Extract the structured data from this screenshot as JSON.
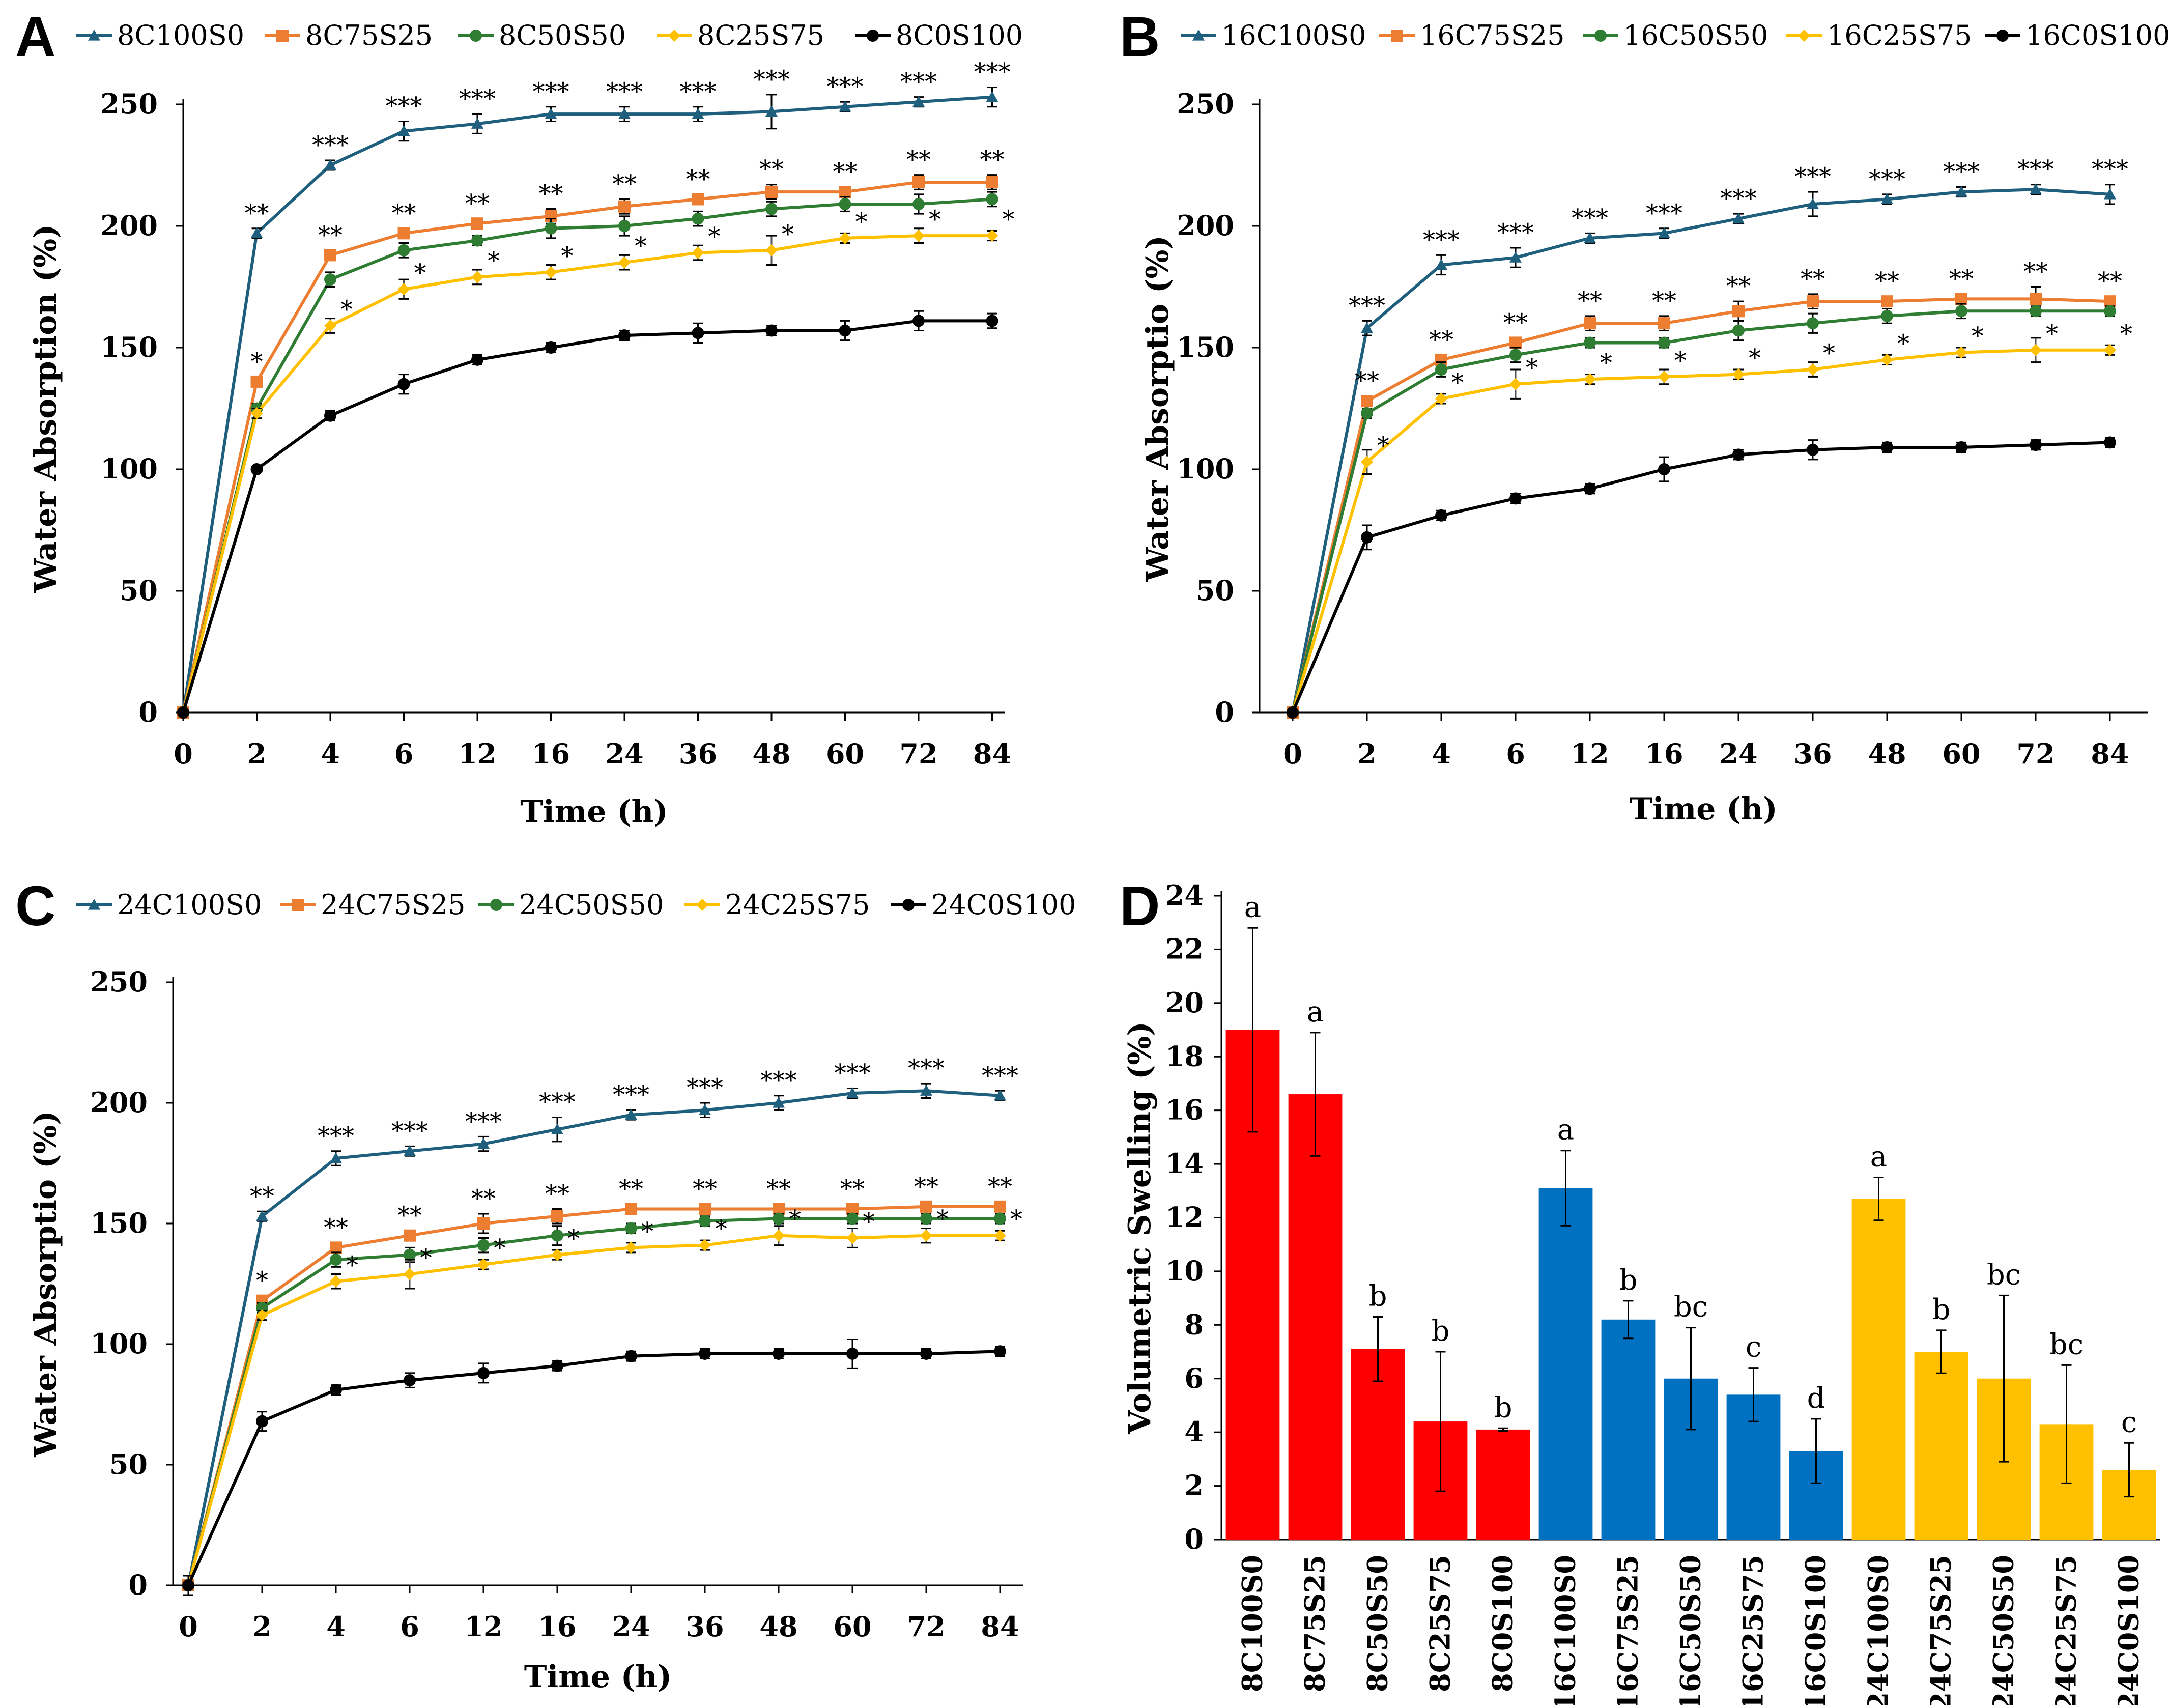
{
  "chart_data": [
    {
      "type": "line",
      "panel": "A",
      "xlabel": "Time (h)",
      "ylabel": "Water Absorption (%)",
      "ylim": [
        0,
        250
      ],
      "yticks": [
        0,
        50,
        100,
        150,
        200,
        250
      ],
      "categories": [
        "0",
        "2",
        "4",
        "6",
        "12",
        "16",
        "24",
        "36",
        "48",
        "60",
        "72",
        "84"
      ],
      "series": [
        {
          "name": "8C100S0",
          "color": "#1f5f7e",
          "marker": "triangle",
          "values": [
            0,
            197,
            225,
            239,
            242,
            246,
            246,
            246,
            247,
            249,
            251,
            253
          ],
          "errors": [
            0,
            2,
            2,
            4,
            4,
            3,
            3,
            3,
            7,
            2,
            2,
            4
          ],
          "stars": [
            "",
            "**",
            "***",
            "***",
            "***",
            "***",
            "***",
            "***",
            "***",
            "***",
            "***",
            "***"
          ]
        },
        {
          "name": "8C75S25",
          "color": "#ed7d31",
          "marker": "square",
          "values": [
            0,
            136,
            188,
            197,
            201,
            204,
            208,
            211,
            214,
            214,
            218,
            218
          ],
          "errors": [
            0,
            2,
            2,
            2,
            2,
            3,
            3,
            2,
            3,
            2,
            3,
            3
          ],
          "stars": [
            "",
            "*",
            "**",
            "**",
            "**",
            "**",
            "**",
            "**",
            "**",
            "**",
            "**",
            "**"
          ]
        },
        {
          "name": "8C50S50",
          "color": "#2e7d32",
          "marker": "circle",
          "values": [
            0,
            125,
            178,
            190,
            194,
            199,
            200,
            203,
            207,
            209,
            209,
            211
          ],
          "errors": [
            0,
            2,
            3,
            3,
            2,
            4,
            4,
            3,
            3,
            3,
            4,
            3
          ],
          "stars": [
            "",
            "",
            "",
            "",
            "",
            "",
            "",
            "",
            "",
            "",
            "",
            ""
          ]
        },
        {
          "name": "8C25S75",
          "color": "#ffc000",
          "marker": "diamond",
          "values": [
            0,
            123,
            159,
            174,
            179,
            181,
            185,
            189,
            190,
            195,
            196,
            196
          ],
          "errors": [
            0,
            2,
            3,
            4,
            3,
            3,
            3,
            3,
            6,
            2,
            3,
            2
          ],
          "stars": [
            "",
            "",
            "*",
            "*",
            "*",
            "*",
            "*",
            "*",
            "*",
            "*",
            "*",
            "*"
          ]
        },
        {
          "name": "8C0S100",
          "color": "#000000",
          "marker": "circle",
          "values": [
            0,
            100,
            122,
            135,
            145,
            150,
            155,
            156,
            157,
            157,
            161,
            161
          ],
          "errors": [
            0,
            1,
            2,
            4,
            2,
            2,
            2,
            4,
            2,
            4,
            4,
            3
          ],
          "stars": [
            "",
            "",
            "",
            "",
            "",
            "",
            "",
            "",
            "",
            "",
            "",
            ""
          ]
        }
      ]
    },
    {
      "type": "line",
      "panel": "B",
      "xlabel": "Time (h)",
      "ylabel": "Water Absorptio (%)",
      "ylim": [
        0,
        250
      ],
      "yticks": [
        0,
        50,
        100,
        150,
        200,
        250
      ],
      "categories": [
        "0",
        "2",
        "4",
        "6",
        "12",
        "16",
        "24",
        "36",
        "48",
        "60",
        "72",
        "84"
      ],
      "series": [
        {
          "name": "16C100S0",
          "color": "#1f5f7e",
          "marker": "triangle",
          "values": [
            0,
            158,
            184,
            187,
            195,
            197,
            203,
            209,
            211,
            214,
            215,
            213
          ],
          "errors": [
            0,
            3,
            4,
            4,
            2,
            2,
            2,
            5,
            2,
            2,
            2,
            4
          ],
          "stars": [
            "",
            "***",
            "***",
            "***",
            "***",
            "***",
            "***",
            "***",
            "***",
            "***",
            "***",
            "***"
          ]
        },
        {
          "name": "16C75S25",
          "color": "#ed7d31",
          "marker": "square",
          "values": [
            0,
            128,
            145,
            152,
            160,
            160,
            165,
            169,
            169,
            170,
            170,
            169
          ],
          "errors": [
            0,
            2,
            2,
            2,
            3,
            3,
            4,
            3,
            2,
            2,
            5,
            2
          ],
          "stars": [
            "",
            "**",
            "**",
            "**",
            "**",
            "**",
            "**",
            "**",
            "**",
            "**",
            "**",
            "**"
          ]
        },
        {
          "name": "16C50S50",
          "color": "#2e7d32",
          "marker": "circle",
          "values": [
            0,
            123,
            141,
            147,
            152,
            152,
            157,
            160,
            163,
            165,
            165,
            165
          ],
          "errors": [
            0,
            2,
            3,
            3,
            2,
            2,
            4,
            4,
            3,
            3,
            2,
            2
          ],
          "stars": [
            "",
            "",
            "",
            "",
            "",
            "",
            "",
            "",
            "",
            "",
            "",
            ""
          ]
        },
        {
          "name": "16C25S75",
          "color": "#ffc000",
          "marker": "diamond",
          "values": [
            0,
            103,
            129,
            135,
            137,
            138,
            139,
            141,
            145,
            148,
            149,
            149
          ],
          "errors": [
            0,
            5,
            2,
            6,
            2,
            3,
            2,
            3,
            2,
            2,
            5,
            2
          ],
          "stars": [
            "",
            "*",
            "*",
            "*",
            "*",
            "*",
            "*",
            "*",
            "*",
            "*",
            "*",
            "*"
          ]
        },
        {
          "name": "16C0S100",
          "color": "#000000",
          "marker": "circle",
          "values": [
            0,
            72,
            81,
            88,
            92,
            100,
            106,
            108,
            109,
            109,
            110,
            111
          ],
          "errors": [
            0,
            5,
            2,
            2,
            2,
            5,
            2,
            4,
            2,
            2,
            2,
            2
          ],
          "stars": [
            "",
            "",
            "",
            "",
            "",
            "",
            "",
            "",
            "",
            "",
            "",
            ""
          ]
        }
      ]
    },
    {
      "type": "line",
      "panel": "C",
      "xlabel": "Time (h)",
      "ylabel": "Water Absorptio (%)",
      "ylim": [
        0,
        250
      ],
      "yticks": [
        0,
        50,
        100,
        150,
        200,
        250
      ],
      "categories": [
        "0",
        "2",
        "4",
        "6",
        "12",
        "16",
        "24",
        "36",
        "48",
        "60",
        "72",
        "84"
      ],
      "series": [
        {
          "name": "24C100S0",
          "color": "#1f5f7e",
          "marker": "triangle",
          "values": [
            0,
            153,
            177,
            180,
            183,
            189,
            195,
            197,
            200,
            204,
            205,
            203
          ],
          "errors": [
            4,
            2,
            3,
            2,
            3,
            5,
            2,
            3,
            3,
            2,
            3,
            2
          ],
          "stars": [
            "",
            "**",
            "***",
            "***",
            "***",
            "***",
            "***",
            "***",
            "***",
            "***",
            "***",
            "***"
          ]
        },
        {
          "name": "24C75S25",
          "color": "#ed7d31",
          "marker": "square",
          "values": [
            0,
            118,
            140,
            145,
            150,
            153,
            156,
            156,
            156,
            156,
            157,
            157
          ],
          "errors": [
            4,
            2,
            2,
            2,
            4,
            3,
            2,
            2,
            2,
            2,
            2,
            2
          ],
          "stars": [
            "",
            "*",
            "**",
            "**",
            "**",
            "**",
            "**",
            "**",
            "**",
            "**",
            "**",
            "**"
          ]
        },
        {
          "name": "24C50S50",
          "color": "#2e7d32",
          "marker": "circle",
          "values": [
            0,
            115,
            135,
            137,
            141,
            145,
            148,
            151,
            152,
            152,
            152,
            152
          ],
          "errors": [
            4,
            2,
            3,
            3,
            3,
            4,
            2,
            2,
            2,
            2,
            2,
            2
          ],
          "stars": [
            "",
            "",
            "",
            "",
            "",
            "",
            "",
            "",
            "",
            "",
            "",
            ""
          ]
        },
        {
          "name": "24C25S75",
          "color": "#ffc000",
          "marker": "diamond",
          "values": [
            0,
            112,
            126,
            129,
            133,
            137,
            140,
            141,
            145,
            144,
            145,
            145
          ],
          "errors": [
            4,
            2,
            3,
            6,
            2,
            2,
            2,
            2,
            4,
            4,
            3,
            2
          ],
          "stars": [
            "",
            "",
            "*",
            "*",
            "*",
            "*",
            "*",
            "*",
            "*",
            "*",
            "*",
            "*"
          ]
        },
        {
          "name": "24C0S100",
          "color": "#000000",
          "marker": "circle",
          "values": [
            0,
            68,
            81,
            85,
            88,
            91,
            95,
            96,
            96,
            96,
            96,
            97
          ],
          "errors": [
            4,
            4,
            2,
            3,
            4,
            2,
            2,
            2,
            2,
            6,
            2,
            2
          ],
          "stars": [
            "",
            "",
            "",
            "",
            "",
            "",
            "",
            "",
            "",
            "",
            "",
            ""
          ]
        }
      ]
    },
    {
      "type": "bar",
      "panel": "D",
      "xlabel": "",
      "ylabel": "Volumetric Swelling (%)",
      "ylim": [
        0,
        24
      ],
      "yticks": [
        0,
        2,
        4,
        6,
        8,
        10,
        12,
        14,
        16,
        18,
        20,
        22,
        24
      ],
      "categories": [
        "8C100S0",
        "8C75S25",
        "8C50S50",
        "8C25S75",
        "8C0S100",
        "16C100S0",
        "16C75S25",
        "16C50S50",
        "16C25S75",
        "16C0S100",
        "24C100S0",
        "24C75S25",
        "24C50S50",
        "24C25S75",
        "24C0S100"
      ],
      "values": [
        19.0,
        16.6,
        7.1,
        4.4,
        4.1,
        13.1,
        8.2,
        6.0,
        5.4,
        3.3,
        12.7,
        7.0,
        6.0,
        4.3,
        2.6
      ],
      "errors": [
        3.8,
        2.3,
        1.2,
        2.6,
        0.05,
        1.4,
        0.7,
        1.9,
        1.0,
        1.2,
        0.8,
        0.8,
        3.1,
        2.2,
        1.0
      ],
      "labels": [
        "a",
        "a",
        "b",
        "b",
        "b",
        "a",
        "b",
        "bc",
        "c",
        "d",
        "a",
        "b",
        "bc",
        "bc",
        "c"
      ],
      "colors": [
        "#ff0000",
        "#ff0000",
        "#ff0000",
        "#ff0000",
        "#ff0000",
        "#0070c0",
        "#0070c0",
        "#0070c0",
        "#0070c0",
        "#0070c0",
        "#ffc000",
        "#ffc000",
        "#ffc000",
        "#ffc000",
        "#ffc000"
      ]
    }
  ]
}
